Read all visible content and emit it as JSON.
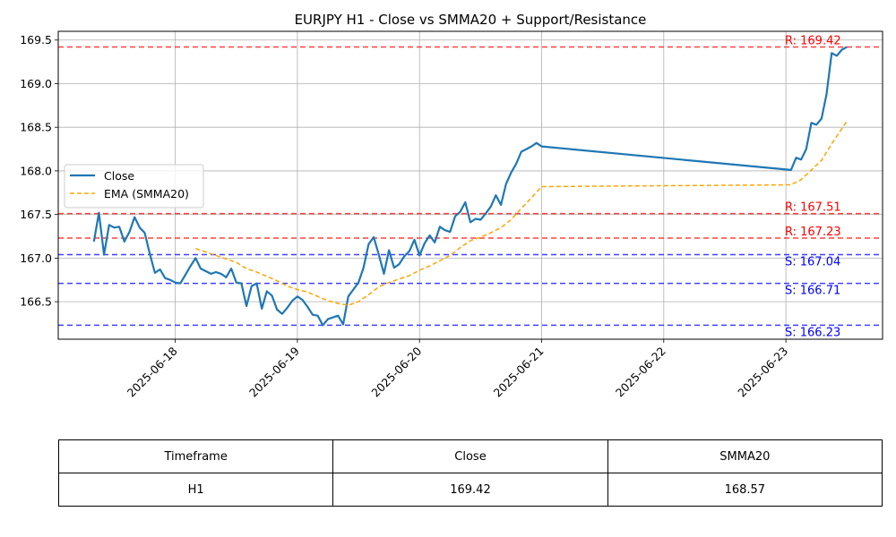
{
  "chart_data": {
    "type": "line",
    "title": "EURJPY H1 - Close vs SMMA20 + Support/Resistance",
    "xlabel": "",
    "ylabel": "",
    "x_range": [
      "2025-06-17T01:00",
      "2025-06-23T19:00"
    ],
    "ylim": [
      166.07,
      169.6
    ],
    "grid": true,
    "legend_placement": "center-left",
    "x_ticks": [
      "2025-06-18",
      "2025-06-19",
      "2025-06-20",
      "2025-06-21",
      "2025-06-22",
      "2025-06-23"
    ],
    "y_ticks": [
      "166.5",
      "167.0",
      "167.5",
      "168.0",
      "168.5",
      "169.0",
      "169.5"
    ],
    "series": [
      {
        "name": "Close",
        "color": "#1f77b4",
        "style": "solid",
        "points": [
          [
            "2025-06-17T08:00",
            167.19
          ],
          [
            "2025-06-17T09:00",
            167.52
          ],
          [
            "2025-06-17T10:00",
            167.04
          ],
          [
            "2025-06-17T11:00",
            167.38
          ],
          [
            "2025-06-17T12:00",
            167.35
          ],
          [
            "2025-06-17T13:00",
            167.36
          ],
          [
            "2025-06-17T14:00",
            167.19
          ],
          [
            "2025-06-17T15:00",
            167.3
          ],
          [
            "2025-06-17T16:00",
            167.47
          ],
          [
            "2025-06-17T17:00",
            167.35
          ],
          [
            "2025-06-17T18:00",
            167.29
          ],
          [
            "2025-06-17T19:00",
            167.05
          ],
          [
            "2025-06-17T20:00",
            166.83
          ],
          [
            "2025-06-17T21:00",
            166.87
          ],
          [
            "2025-06-17T22:00",
            166.77
          ],
          [
            "2025-06-17T23:00",
            166.75
          ],
          [
            "2025-06-18T00:00",
            166.72
          ],
          [
            "2025-06-18T01:00",
            166.71
          ],
          [
            "2025-06-18T02:00",
            166.81
          ],
          [
            "2025-06-18T03:00",
            166.91
          ],
          [
            "2025-06-18T04:00",
            167.0
          ],
          [
            "2025-06-18T05:00",
            166.88
          ],
          [
            "2025-06-18T06:00",
            166.85
          ],
          [
            "2025-06-18T07:00",
            166.82
          ],
          [
            "2025-06-18T08:00",
            166.84
          ],
          [
            "2025-06-18T09:00",
            166.82
          ],
          [
            "2025-06-18T10:00",
            166.78
          ],
          [
            "2025-06-18T11:00",
            166.88
          ],
          [
            "2025-06-18T12:00",
            166.72
          ],
          [
            "2025-06-18T13:00",
            166.71
          ],
          [
            "2025-06-18T14:00",
            166.45
          ],
          [
            "2025-06-18T15:00",
            166.68
          ],
          [
            "2025-06-18T16:00",
            166.71
          ],
          [
            "2025-06-18T17:00",
            166.42
          ],
          [
            "2025-06-18T18:00",
            166.62
          ],
          [
            "2025-06-18T19:00",
            166.57
          ],
          [
            "2025-06-18T20:00",
            166.41
          ],
          [
            "2025-06-18T21:00",
            166.36
          ],
          [
            "2025-06-18T22:00",
            166.43
          ],
          [
            "2025-06-18T23:00",
            166.51
          ],
          [
            "2025-06-19T00:00",
            166.56
          ],
          [
            "2025-06-19T01:00",
            166.52
          ],
          [
            "2025-06-19T02:00",
            166.44
          ],
          [
            "2025-06-19T03:00",
            166.35
          ],
          [
            "2025-06-19T04:00",
            166.34
          ],
          [
            "2025-06-19T05:00",
            166.23
          ],
          [
            "2025-06-19T06:00",
            166.3
          ],
          [
            "2025-06-19T07:00",
            166.32
          ],
          [
            "2025-06-19T08:00",
            166.34
          ],
          [
            "2025-06-19T09:00",
            166.24
          ],
          [
            "2025-06-19T10:00",
            166.56
          ],
          [
            "2025-06-19T11:00",
            166.64
          ],
          [
            "2025-06-19T12:00",
            166.72
          ],
          [
            "2025-06-19T13:00",
            166.89
          ],
          [
            "2025-06-19T14:00",
            167.16
          ],
          [
            "2025-06-19T15:00",
            167.24
          ],
          [
            "2025-06-19T16:00",
            167.04
          ],
          [
            "2025-06-19T17:00",
            166.82
          ],
          [
            "2025-06-19T18:00",
            167.09
          ],
          [
            "2025-06-19T19:00",
            166.89
          ],
          [
            "2025-06-19T20:00",
            166.93
          ],
          [
            "2025-06-19T21:00",
            167.02
          ],
          [
            "2025-06-19T22:00",
            167.08
          ],
          [
            "2025-06-19T23:00",
            167.21
          ],
          [
            "2025-06-20T00:00",
            167.03
          ],
          [
            "2025-06-20T01:00",
            167.17
          ],
          [
            "2025-06-20T02:00",
            167.26
          ],
          [
            "2025-06-20T03:00",
            167.18
          ],
          [
            "2025-06-20T04:00",
            167.36
          ],
          [
            "2025-06-20T05:00",
            167.32
          ],
          [
            "2025-06-20T06:00",
            167.3
          ],
          [
            "2025-06-20T07:00",
            167.48
          ],
          [
            "2025-06-20T08:00",
            167.53
          ],
          [
            "2025-06-20T09:00",
            167.64
          ],
          [
            "2025-06-20T10:00",
            167.41
          ],
          [
            "2025-06-20T11:00",
            167.45
          ],
          [
            "2025-06-20T12:00",
            167.44
          ],
          [
            "2025-06-20T13:00",
            167.51
          ],
          [
            "2025-06-20T14:00",
            167.59
          ],
          [
            "2025-06-20T15:00",
            167.72
          ],
          [
            "2025-06-20T16:00",
            167.61
          ],
          [
            "2025-06-20T17:00",
            167.85
          ],
          [
            "2025-06-20T18:00",
            167.98
          ],
          [
            "2025-06-20T19:00",
            168.08
          ],
          [
            "2025-06-20T20:00",
            168.22
          ],
          [
            "2025-06-20T21:00",
            168.25
          ],
          [
            "2025-06-20T22:00",
            168.28
          ],
          [
            "2025-06-20T23:00",
            168.32
          ],
          [
            "2025-06-21T00:00",
            168.28
          ],
          [
            "2025-06-23T01:00",
            168.01
          ],
          [
            "2025-06-23T02:00",
            168.15
          ],
          [
            "2025-06-23T03:00",
            168.13
          ],
          [
            "2025-06-23T04:00",
            168.25
          ],
          [
            "2025-06-23T05:00",
            168.55
          ],
          [
            "2025-06-23T06:00",
            168.53
          ],
          [
            "2025-06-23T07:00",
            168.6
          ],
          [
            "2025-06-23T08:00",
            168.88
          ],
          [
            "2025-06-23T09:00",
            169.35
          ],
          [
            "2025-06-23T10:00",
            169.32
          ],
          [
            "2025-06-23T11:00",
            169.39
          ],
          [
            "2025-06-23T12:00",
            169.42
          ]
        ]
      },
      {
        "name": "EMA (SMMA20)",
        "color": "#ffa500",
        "style": "dashed",
        "points": [
          [
            "2025-06-18T04:00",
            167.11
          ],
          [
            "2025-06-18T06:00",
            167.07
          ],
          [
            "2025-06-18T08:00",
            167.03
          ],
          [
            "2025-06-18T10:00",
            166.99
          ],
          [
            "2025-06-18T12:00",
            166.95
          ],
          [
            "2025-06-18T14:00",
            166.88
          ],
          [
            "2025-06-18T16:00",
            166.84
          ],
          [
            "2025-06-18T18:00",
            166.79
          ],
          [
            "2025-06-18T20:00",
            166.74
          ],
          [
            "2025-06-18T22:00",
            166.68
          ],
          [
            "2025-06-19T00:00",
            166.64
          ],
          [
            "2025-06-19T02:00",
            166.61
          ],
          [
            "2025-06-19T04:00",
            166.56
          ],
          [
            "2025-06-19T06:00",
            166.51
          ],
          [
            "2025-06-19T08:00",
            166.48
          ],
          [
            "2025-06-19T10:00",
            166.46
          ],
          [
            "2025-06-19T12:00",
            166.5
          ],
          [
            "2025-06-19T14:00",
            166.58
          ],
          [
            "2025-06-19T16:00",
            166.67
          ],
          [
            "2025-06-19T18:00",
            166.72
          ],
          [
            "2025-06-19T20:00",
            166.76
          ],
          [
            "2025-06-19T22:00",
            166.8
          ],
          [
            "2025-06-20T00:00",
            166.86
          ],
          [
            "2025-06-20T02:00",
            166.91
          ],
          [
            "2025-06-20T04:00",
            166.97
          ],
          [
            "2025-06-20T06:00",
            167.03
          ],
          [
            "2025-06-20T08:00",
            167.12
          ],
          [
            "2025-06-20T10:00",
            167.2
          ],
          [
            "2025-06-20T12:00",
            167.24
          ],
          [
            "2025-06-20T14:00",
            167.29
          ],
          [
            "2025-06-20T16:00",
            167.35
          ],
          [
            "2025-06-20T18:00",
            167.44
          ],
          [
            "2025-06-20T20:00",
            167.57
          ],
          [
            "2025-06-20T22:00",
            167.69
          ],
          [
            "2025-06-21T00:00",
            167.82
          ],
          [
            "2025-06-23T01:00",
            167.84
          ],
          [
            "2025-06-23T03:00",
            167.9
          ],
          [
            "2025-06-23T05:00",
            168.01
          ],
          [
            "2025-06-23T07:00",
            168.12
          ],
          [
            "2025-06-23T09:00",
            168.31
          ],
          [
            "2025-06-23T12:00",
            168.57
          ]
        ]
      }
    ],
    "levels": [
      {
        "kind": "resistance",
        "value": 169.42,
        "label": "R: 169.42",
        "color": "#ff0000"
      },
      {
        "kind": "resistance",
        "value": 167.51,
        "label": "R: 167.51",
        "color": "#ff0000"
      },
      {
        "kind": "resistance",
        "value": 167.23,
        "label": "R: 167.23",
        "color": "#ff0000"
      },
      {
        "kind": "support",
        "value": 167.04,
        "label": "S: 167.04",
        "color": "#0000ff"
      },
      {
        "kind": "support",
        "value": 166.71,
        "label": "S: 166.71",
        "color": "#0000ff"
      },
      {
        "kind": "support",
        "value": 166.23,
        "label": "S: 166.23",
        "color": "#0000ff"
      }
    ]
  },
  "table": {
    "headers": [
      "Timeframe",
      "Close",
      "SMMA20"
    ],
    "row": [
      "H1",
      "169.42",
      "168.57"
    ]
  }
}
